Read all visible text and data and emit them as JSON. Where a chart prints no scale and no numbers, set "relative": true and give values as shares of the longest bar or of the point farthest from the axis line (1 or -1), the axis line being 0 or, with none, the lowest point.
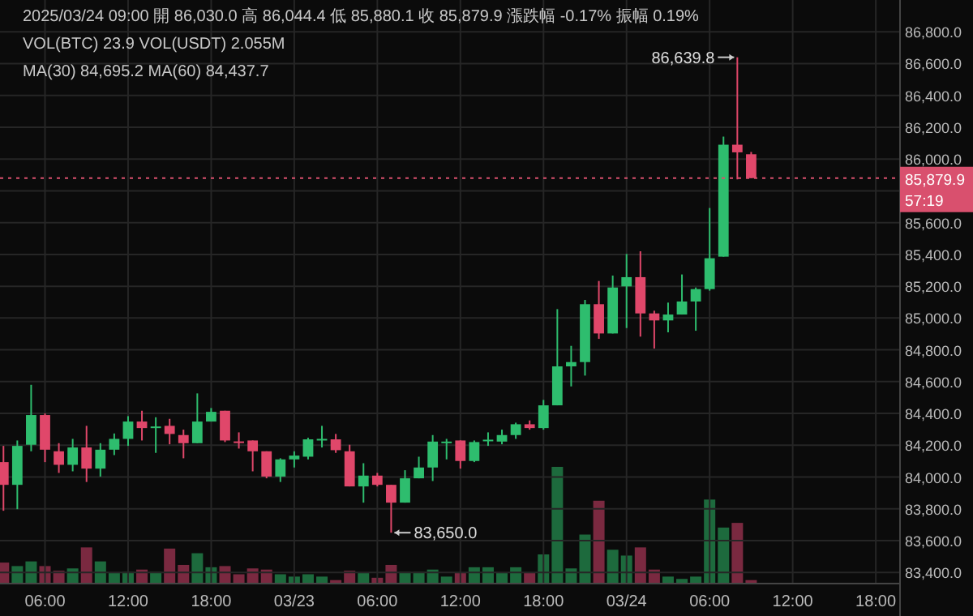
{
  "chart_data": [
    {
      "type": "candlestick",
      "grid": true,
      "annotations": [
        "2025/03/24 09:00  開 86,030.0  高 86,044.4  低 85,880.1  收 85,879.9  漲跌幅 -0.17%  振幅 0.19%",
        "VOL(BTC) 23.9  VOL(USDT) 2.055M",
        "MA(30) 84,695.2  MA(60) 84,437.7",
        "57:19",
        {
          "text": "86,639.8",
          "x": "2025-03-24T08:00",
          "y": 86639.8
        },
        {
          "text": "83,650.0",
          "x": "2025-03-23T07:00",
          "y": 83650.0
        }
      ],
      "x": [
        "2025-03-22T03:00",
        "2025-03-22T04:00",
        "2025-03-22T05:00",
        "2025-03-22T06:00",
        "2025-03-22T07:00",
        "2025-03-22T08:00",
        "2025-03-22T09:00",
        "2025-03-22T10:00",
        "2025-03-22T11:00",
        "2025-03-22T12:00",
        "2025-03-22T13:00",
        "2025-03-22T14:00",
        "2025-03-22T15:00",
        "2025-03-22T16:00",
        "2025-03-22T17:00",
        "2025-03-22T18:00",
        "2025-03-22T19:00",
        "2025-03-22T20:00",
        "2025-03-22T21:00",
        "2025-03-22T22:00",
        "2025-03-22T23:00",
        "2025-03-23T00:00",
        "2025-03-23T01:00",
        "2025-03-23T02:00",
        "2025-03-23T03:00",
        "2025-03-23T04:00",
        "2025-03-23T05:00",
        "2025-03-23T06:00",
        "2025-03-23T07:00",
        "2025-03-23T08:00",
        "2025-03-23T09:00",
        "2025-03-23T10:00",
        "2025-03-23T11:00",
        "2025-03-23T12:00",
        "2025-03-23T13:00",
        "2025-03-23T14:00",
        "2025-03-23T15:00",
        "2025-03-23T16:00",
        "2025-03-23T17:00",
        "2025-03-23T18:00",
        "2025-03-23T19:00",
        "2025-03-23T20:00",
        "2025-03-23T21:00",
        "2025-03-23T22:00",
        "2025-03-23T23:00",
        "2025-03-24T00:00",
        "2025-03-24T01:00",
        "2025-03-24T02:00",
        "2025-03-24T03:00",
        "2025-03-24T04:00",
        "2025-03-24T05:00",
        "2025-03-24T06:00",
        "2025-03-24T07:00",
        "2025-03-24T08:00",
        "2025-03-24T09:00"
      ],
      "ohlc": [
        [
          84094,
          84196,
          83788,
          83951
        ],
        [
          83951,
          84230,
          83798,
          84196
        ],
        [
          84203,
          84580,
          84162,
          84390
        ],
        [
          84390,
          84400,
          84094,
          84172
        ],
        [
          84162,
          84213,
          84026,
          84077
        ],
        [
          84077,
          84240,
          84036,
          84186
        ],
        [
          84186,
          84322,
          83969,
          84053
        ],
        [
          84053,
          84213,
          84003,
          84172
        ],
        [
          84172,
          84274,
          84138,
          84240
        ],
        [
          84240,
          84383,
          84196,
          84349
        ],
        [
          84349,
          84417,
          84230,
          84308
        ],
        [
          84313,
          84376,
          84152,
          84318
        ],
        [
          84322,
          84366,
          84206,
          84271
        ],
        [
          84264,
          84298,
          84118,
          84213
        ],
        [
          84213,
          84526,
          84213,
          84349
        ],
        [
          84349,
          84434,
          84349,
          84410
        ],
        [
          84417,
          84417,
          84220,
          84230
        ],
        [
          84224,
          84281,
          84179,
          84222
        ],
        [
          84230,
          84230,
          84036,
          84162
        ],
        [
          84162,
          84162,
          83992,
          84003
        ],
        [
          84003,
          84118,
          83969,
          84111
        ],
        [
          84111,
          84162,
          84060,
          84135
        ],
        [
          84128,
          84247,
          84111,
          84237
        ],
        [
          84237,
          84322,
          84186,
          84240
        ],
        [
          84237,
          84271,
          84152,
          84169
        ],
        [
          84162,
          84203,
          83941,
          83941
        ],
        [
          83941,
          84087,
          83839,
          84009
        ],
        [
          84009,
          84026,
          83941,
          83951
        ],
        [
          83951,
          83951,
          83650.0,
          83839
        ],
        [
          83839,
          84043,
          83839,
          83992
        ],
        [
          83992,
          84128,
          83992,
          84060
        ],
        [
          84060,
          84264,
          83975,
          84223
        ],
        [
          84220,
          84240,
          84111,
          84223
        ],
        [
          84230,
          84230,
          84053,
          84101
        ],
        [
          84101,
          84230,
          84094,
          84220
        ],
        [
          84230,
          84281,
          84196,
          84235
        ],
        [
          84223,
          84298,
          84206,
          84264
        ],
        [
          84264,
          84342,
          84240,
          84332
        ],
        [
          84332,
          84356,
          84298,
          84308
        ],
        [
          84308,
          84485,
          84298,
          84451
        ],
        [
          84451,
          85056,
          84451,
          84696
        ],
        [
          84696,
          84825,
          84570,
          84723
        ],
        [
          84723,
          85114,
          84638,
          85087
        ],
        [
          85087,
          85233,
          84869,
          84903
        ],
        [
          84903,
          85267,
          84903,
          85192
        ],
        [
          85199,
          85403,
          84937,
          85257
        ],
        [
          85257,
          85420,
          84883,
          85029
        ],
        [
          85029,
          85046,
          84808,
          84985
        ],
        [
          84985,
          85097,
          84910,
          85022
        ],
        [
          85022,
          85274,
          85022,
          85104
        ],
        [
          85104,
          85192,
          84920,
          85182
        ],
        [
          85182,
          85692,
          85172,
          85376
        ],
        [
          85386,
          86141,
          85386,
          86090
        ],
        [
          86090,
          86639.8,
          85872,
          86042
        ],
        [
          86030.0,
          86044.4,
          85879.9,
          85879.9
        ]
      ],
      "colors": [
        "#e0476a",
        "#2ebd6e",
        "#2ebd6e",
        "#e0476a",
        "#e0476a",
        "#2ebd6e",
        "#e0476a",
        "#2ebd6e",
        "#2ebd6e",
        "#2ebd6e",
        "#e0476a",
        "#2ebd6e",
        "#e0476a",
        "#e0476a",
        "#2ebd6e",
        "#2ebd6e",
        "#e0476a",
        "#e0476a",
        "#e0476a",
        "#e0476a",
        "#2ebd6e",
        "#2ebd6e",
        "#2ebd6e",
        "#2ebd6e",
        "#e0476a",
        "#e0476a",
        "#2ebd6e",
        "#e0476a",
        "#e0476a",
        "#2ebd6e",
        "#2ebd6e",
        "#2ebd6e",
        "#2ebd6e",
        "#e0476a",
        "#2ebd6e",
        "#2ebd6e",
        "#2ebd6e",
        "#2ebd6e",
        "#e0476a",
        "#2ebd6e",
        "#2ebd6e",
        "#2ebd6e",
        "#2ebd6e",
        "#e0476a",
        "#2ebd6e",
        "#2ebd6e",
        "#e0476a",
        "#e0476a",
        "#2ebd6e",
        "#2ebd6e",
        "#2ebd6e",
        "#2ebd6e",
        "#2ebd6e",
        "#e0476a",
        "#e0476a"
      ],
      "xlim": [
        "2025-03-22T02:45",
        "2025-03-24T19:45"
      ],
      "xticks": [
        {
          "value": "2025-03-22T06:00",
          "label": "06:00"
        },
        {
          "value": "2025-03-22T12:00",
          "label": "12:00"
        },
        {
          "value": "2025-03-22T18:00",
          "label": "18:00"
        },
        {
          "value": "2025-03-23T00:00",
          "label": "03/23"
        },
        {
          "value": "2025-03-23T06:00",
          "label": "06:00"
        },
        {
          "value": "2025-03-23T12:00",
          "label": "12:00"
        },
        {
          "value": "2025-03-23T18:00",
          "label": "18:00"
        },
        {
          "value": "2025-03-24T00:00",
          "label": "03/24"
        },
        {
          "value": "2025-03-24T06:00",
          "label": "06:00"
        },
        {
          "value": "2025-03-24T12:00",
          "label": "12:00"
        },
        {
          "value": "2025-03-24T18:00",
          "label": "18:00"
        }
      ],
      "ylim": [
        83330,
        87000
      ],
      "yticks": [
        {
          "value": 83400,
          "label": "83,400.0"
        },
        {
          "value": 83600,
          "label": "83,600.0"
        },
        {
          "value": 83800,
          "label": "83,800.0"
        },
        {
          "value": 84000,
          "label": "84,000.0"
        },
        {
          "value": 84200,
          "label": "84,200.0"
        },
        {
          "value": 84400,
          "label": "84,400.0"
        },
        {
          "value": 84600,
          "label": "84,600.0"
        },
        {
          "value": 84800,
          "label": "84,800.0"
        },
        {
          "value": 85000,
          "label": "85,000.0"
        },
        {
          "value": 85200,
          "label": "85,200.0"
        },
        {
          "value": 85400,
          "label": "85,400.0"
        },
        {
          "value": 85600,
          "label": "85,600.0"
        },
        {
          "value": 85800,
          "label": null
        },
        {
          "value": 86000,
          "label": "86,000.0"
        },
        {
          "value": 86200,
          "label": "86,200.0"
        },
        {
          "value": 86400,
          "label": "86,400.0"
        },
        {
          "value": 86600,
          "label": "86,600.0"
        },
        {
          "value": 86800,
          "label": "86,800.0"
        }
      ],
      "ref_lines": [
        {
          "axis": "y",
          "value": 85879.9,
          "label": "85,879.9",
          "color": "#d9506e",
          "line_style": "dotted"
        }
      ]
    },
    {
      "type": "bar",
      "relative": true,
      "x": [
        "2025-03-22T03:00",
        "2025-03-22T04:00",
        "2025-03-22T05:00",
        "2025-03-22T06:00",
        "2025-03-22T07:00",
        "2025-03-22T08:00",
        "2025-03-22T09:00",
        "2025-03-22T10:00",
        "2025-03-22T11:00",
        "2025-03-22T12:00",
        "2025-03-22T13:00",
        "2025-03-22T14:00",
        "2025-03-22T15:00",
        "2025-03-22T16:00",
        "2025-03-22T17:00",
        "2025-03-22T18:00",
        "2025-03-22T19:00",
        "2025-03-22T20:00",
        "2025-03-22T21:00",
        "2025-03-22T22:00",
        "2025-03-22T23:00",
        "2025-03-23T00:00",
        "2025-03-23T01:00",
        "2025-03-23T02:00",
        "2025-03-23T03:00",
        "2025-03-23T04:00",
        "2025-03-23T05:00",
        "2025-03-23T06:00",
        "2025-03-23T07:00",
        "2025-03-23T08:00",
        "2025-03-23T09:00",
        "2025-03-23T10:00",
        "2025-03-23T11:00",
        "2025-03-23T12:00",
        "2025-03-23T13:00",
        "2025-03-23T14:00",
        "2025-03-23T15:00",
        "2025-03-23T16:00",
        "2025-03-23T17:00",
        "2025-03-23T18:00",
        "2025-03-23T19:00",
        "2025-03-23T20:00",
        "2025-03-23T21:00",
        "2025-03-23T22:00",
        "2025-03-23T23:00",
        "2025-03-24T00:00",
        "2025-03-24T01:00",
        "2025-03-24T02:00",
        "2025-03-24T03:00",
        "2025-03-24T04:00",
        "2025-03-24T05:00",
        "2025-03-24T06:00",
        "2025-03-24T07:00",
        "2025-03-24T08:00",
        "2025-03-24T09:00"
      ],
      "xlim": [
        "2025-03-22T02:45",
        "2025-03-24T19:45"
      ],
      "values": [
        0.18,
        0.15,
        0.19,
        0.15,
        0.11,
        0.13,
        0.31,
        0.19,
        0.09,
        0.1,
        0.12,
        0.1,
        0.3,
        0.16,
        0.26,
        0.14,
        0.15,
        0.08,
        0.13,
        0.12,
        0.08,
        0.06,
        0.08,
        0.06,
        0.03,
        0.11,
        0.09,
        0.05,
        0.16,
        0.1,
        0.1,
        0.12,
        0.06,
        0.09,
        0.14,
        0.14,
        0.09,
        0.14,
        0.09,
        0.25,
        1,
        0.13,
        0.42,
        0.71,
        0.29,
        0.24,
        0.31,
        0.12,
        0.06,
        0.04,
        0.06,
        0.72,
        0.48,
        0.52,
        0.03
      ],
      "colors": [
        "#7a2940",
        "#1d6a3d",
        "#1d6a3d",
        "#7a2940",
        "#7a2940",
        "#1d6a3d",
        "#7a2940",
        "#1d6a3d",
        "#1d6a3d",
        "#1d6a3d",
        "#7a2940",
        "#1d6a3d",
        "#7a2940",
        "#7a2940",
        "#1d6a3d",
        "#1d6a3d",
        "#7a2940",
        "#7a2940",
        "#7a2940",
        "#7a2940",
        "#1d6a3d",
        "#1d6a3d",
        "#1d6a3d",
        "#1d6a3d",
        "#7a2940",
        "#7a2940",
        "#1d6a3d",
        "#7a2940",
        "#7a2940",
        "#1d6a3d",
        "#1d6a3d",
        "#1d6a3d",
        "#1d6a3d",
        "#7a2940",
        "#1d6a3d",
        "#1d6a3d",
        "#1d6a3d",
        "#1d6a3d",
        "#7a2940",
        "#1d6a3d",
        "#1d6a3d",
        "#1d6a3d",
        "#1d6a3d",
        "#7a2940",
        "#1d6a3d",
        "#1d6a3d",
        "#7a2940",
        "#7a2940",
        "#1d6a3d",
        "#1d6a3d",
        "#1d6a3d",
        "#1d6a3d",
        "#1d6a3d",
        "#7a2940",
        "#7a2940"
      ]
    }
  ]
}
